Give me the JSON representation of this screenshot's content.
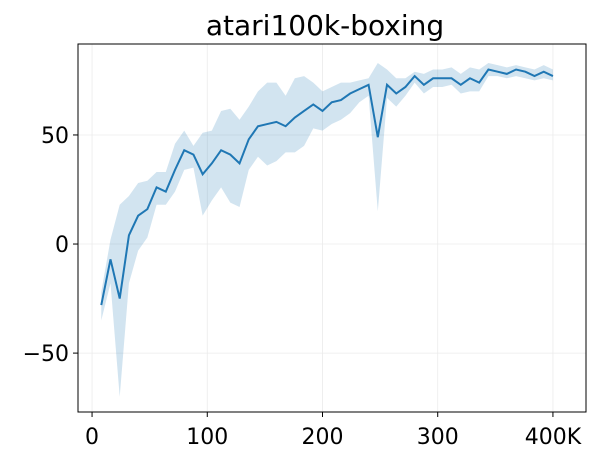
{
  "chart_data": {
    "type": "line",
    "title": "atari100k-boxing",
    "x": [
      8,
      16,
      24,
      32,
      40,
      48,
      56,
      64,
      72,
      80,
      88,
      96,
      104,
      112,
      120,
      128,
      136,
      144,
      152,
      160,
      168,
      176,
      184,
      192,
      200,
      208,
      216,
      224,
      232,
      240,
      248,
      256,
      264,
      272,
      280,
      288,
      296,
      304,
      312,
      320,
      328,
      336,
      344,
      352,
      360,
      368,
      376,
      384,
      392,
      400
    ],
    "series": [
      {
        "color": "#1f77b4",
        "values": [
          -28,
          -7,
          -25,
          4,
          13,
          16,
          26,
          24,
          34,
          43,
          41,
          32,
          37,
          43,
          41,
          37,
          48,
          54,
          55,
          56,
          54,
          58,
          61,
          64,
          61,
          65,
          66,
          69,
          71,
          73,
          49,
          73,
          69,
          72,
          77,
          73,
          76,
          76,
          76,
          73,
          76,
          74,
          80,
          79,
          78,
          80,
          79,
          77,
          79,
          77
        ],
        "upper": [
          -22,
          2,
          18,
          22,
          28,
          29,
          33,
          33,
          46,
          52,
          45,
          51,
          52,
          61,
          62,
          57,
          63,
          70,
          74,
          74,
          68,
          76,
          77,
          74,
          70,
          72,
          74,
          74,
          75,
          76,
          83,
          80,
          76,
          76,
          79,
          78,
          80,
          80,
          81,
          78,
          81,
          80,
          83,
          82,
          81,
          82,
          81,
          80,
          82,
          80
        ],
        "lower": [
          -35,
          -18,
          -70,
          -18,
          -3,
          3,
          18,
          18,
          24,
          34,
          35,
          13,
          20,
          26,
          19,
          17,
          34,
          40,
          36,
          38,
          42,
          42,
          45,
          53,
          52,
          55,
          57,
          60,
          65,
          68,
          15,
          67,
          63,
          68,
          74,
          69,
          72,
          72,
          73,
          69,
          70,
          70,
          77,
          77,
          76,
          77,
          76,
          75,
          76,
          75
        ]
      }
    ],
    "xlim": [
      -12.2,
      428.7
    ],
    "ylim": [
      -77,
      91.7
    ],
    "xticks": [
      0,
      100,
      200,
      300,
      {
        "value": 400,
        "label": "400K"
      }
    ],
    "yticks": [
      {
        "value": -50,
        "label": "−50"
      },
      0,
      50
    ],
    "grid": true
  }
}
